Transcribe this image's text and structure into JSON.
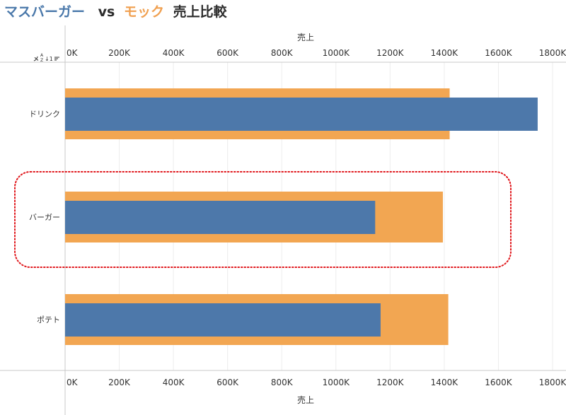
{
  "title": {
    "brand_a": "マスバーガー",
    "vs": "vs",
    "brand_b": "モック",
    "rest": "売上比較",
    "colors": {
      "brand_a": "#4a78aa",
      "vs": "#2b2b2b",
      "brand_b": "#f0a050",
      "rest": "#2b2b2b"
    }
  },
  "sort_icon": "sort-descending-icon",
  "chart_data": {
    "type": "bar",
    "orientation": "horizontal",
    "style": "bullet",
    "categories": [
      "ドリンク",
      "バーガー",
      "ポテト"
    ],
    "series": [
      {
        "values": [
          1420,
          1395,
          1415
        ],
        "color": "#f2a652",
        "role": "background"
      },
      {
        "values": [
          1745,
          1145,
          1165
        ],
        "color": "#4d78aa",
        "role": "foreground"
      }
    ],
    "xlabel": "売上",
    "xlim": [
      0,
      1800
    ],
    "ticks": [
      0,
      200,
      400,
      600,
      800,
      1000,
      1200,
      1400,
      1600,
      1800
    ],
    "tick_labels": [
      "0K",
      "200K",
      "400K",
      "600K",
      "800K",
      "1000K",
      "1200K",
      "1400K",
      "1600K",
      "1800K"
    ],
    "highlighted_category": "バーガー",
    "highlight_color": "#e0151a",
    "grid": true
  }
}
